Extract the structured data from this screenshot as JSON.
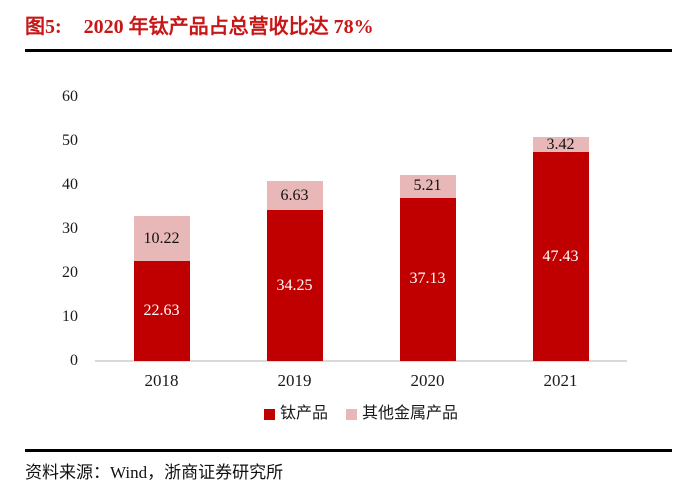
{
  "header": {
    "figure_label": "图5:",
    "title": "2020 年钛产品占总营收比达 78%"
  },
  "colors": {
    "title_red": "#c81717",
    "series_red": "#c00000",
    "series_pink": "#e7b8b7",
    "axis_line": "#d9d9d9",
    "divider": "#000000"
  },
  "chart_data": {
    "type": "bar",
    "stacked": true,
    "title": "2020 年钛产品占总营收比达 78%",
    "categories": [
      "2018",
      "2019",
      "2020",
      "2021"
    ],
    "series": [
      {
        "name": "钛产品",
        "color": "#c00000",
        "label_color": "#ffffff",
        "values": [
          22.63,
          34.25,
          37.13,
          47.43
        ]
      },
      {
        "name": "其他金属产品",
        "color": "#e7b8b7",
        "label_color": "#111111",
        "values": [
          10.22,
          6.63,
          5.21,
          3.42
        ]
      }
    ],
    "ylim": [
      0,
      60
    ],
    "yticks": [
      0,
      10,
      20,
      30,
      40,
      50,
      60
    ],
    "grid": false,
    "legend_position": "bottom",
    "value_labels": true
  },
  "footer": {
    "source_text": "资料来源：Wind，浙商证券研究所"
  }
}
